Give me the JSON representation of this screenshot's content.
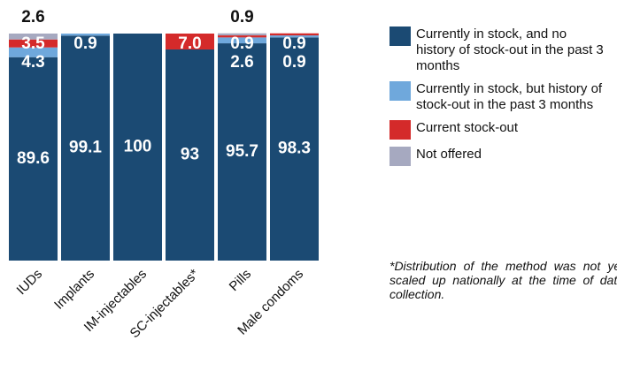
{
  "chart_data": {
    "type": "bar",
    "stacked": true,
    "categories": [
      "IUDs",
      "Implants",
      "IM-injectables",
      "SC-injectables*",
      "Pills",
      "Male condoms"
    ],
    "ylim": [
      0,
      100
    ],
    "series": [
      {
        "name": "Currently in stock, and no history of stock-out in the past 3 months",
        "color": "#1b4a73",
        "values": [
          89.6,
          99.1,
          100,
          93,
          95.7,
          98.3
        ]
      },
      {
        "name": "Currently in stock, but history of stock-out in the past 3 months",
        "color": "#6fa8dc",
        "values": [
          4.3,
          0.9,
          0,
          0,
          2.6,
          0.9
        ]
      },
      {
        "name": "Current stock-out",
        "color": "#d42a2a",
        "values": [
          3.5,
          0,
          0,
          7.0,
          0.9,
          0.9
        ],
        "value_labels": [
          "3.5",
          null,
          null,
          "7.0",
          "0.9",
          "0.9"
        ]
      },
      {
        "name": "Not offered",
        "color": "#a6a9c0",
        "values": [
          2.6,
          0,
          0,
          0,
          0.9,
          0
        ]
      }
    ],
    "annotation": "*Distribution of the method was not yet scaled up nationally at the time of data collection."
  }
}
